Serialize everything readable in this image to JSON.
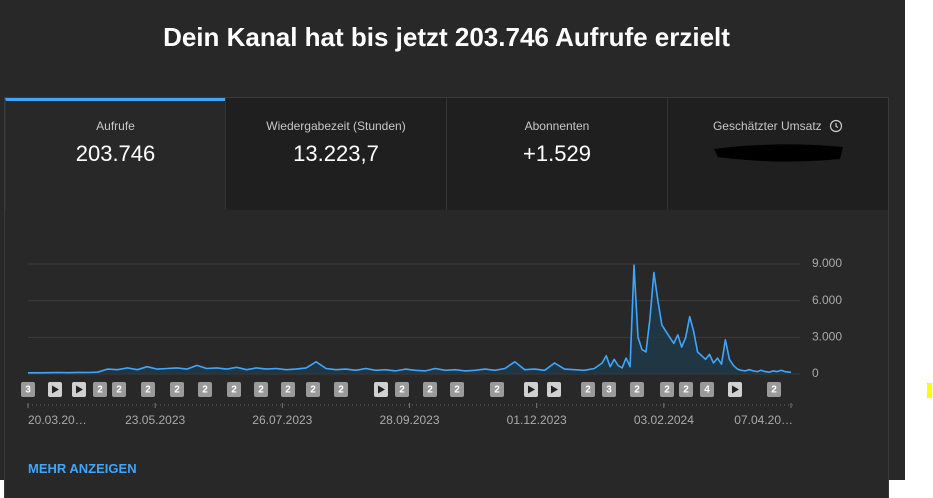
{
  "header": {
    "title": "Dein Kanal hat bis jetzt 203.746 Aufrufe erzielt"
  },
  "tabs": [
    {
      "label": "Aufrufe",
      "value": "203.746"
    },
    {
      "label": "Wiedergabezeit (Stunden)",
      "value": "13.223,7"
    },
    {
      "label": "Abonnenten",
      "value": "+1.529"
    },
    {
      "label": "Geschätzter Umsatz"
    }
  ],
  "chart_data": {
    "type": "line",
    "color": "#3ea6ff",
    "grid": true,
    "x": [
      "20.03.2023",
      "25.03.2023",
      "30.03.2023",
      "04.04.2023",
      "09.04.2023",
      "14.04.2023",
      "19.04.2023",
      "24.04.2023",
      "29.04.2023",
      "04.05.2023",
      "09.05.2023",
      "14.05.2023",
      "19.05.2023",
      "24.05.2023",
      "29.05.2023",
      "03.06.2023",
      "08.06.2023",
      "13.06.2023",
      "18.06.2023",
      "23.06.2023",
      "28.06.2023",
      "03.07.2023",
      "08.07.2023",
      "13.07.2023",
      "18.07.2023",
      "23.07.2023",
      "28.07.2023",
      "02.08.2023",
      "07.08.2023",
      "12.08.2023",
      "17.08.2023",
      "22.08.2023",
      "27.08.2023",
      "01.09.2023",
      "06.09.2023",
      "11.09.2023",
      "16.09.2023",
      "21.09.2023",
      "26.09.2023",
      "01.10.2023",
      "06.10.2023",
      "11.10.2023",
      "16.10.2023",
      "21.10.2023",
      "26.10.2023",
      "31.10.2023",
      "05.11.2023",
      "10.11.2023",
      "15.11.2023",
      "20.11.2023",
      "25.11.2023",
      "30.11.2023",
      "05.12.2023",
      "10.12.2023",
      "15.12.2023",
      "20.12.2023",
      "25.12.2023",
      "30.12.2023",
      "03.01.2024",
      "05.01.2024",
      "07.01.2024",
      "09.01.2024",
      "11.01.2024",
      "13.01.2024",
      "15.01.2024",
      "17.01.2024",
      "19.01.2024",
      "21.01.2024",
      "23.01.2024",
      "25.01.2024",
      "27.01.2024",
      "29.01.2024",
      "31.01.2024",
      "02.02.2024",
      "04.02.2024",
      "06.02.2024",
      "08.02.2024",
      "10.02.2024",
      "12.02.2024",
      "14.02.2024",
      "16.02.2024",
      "18.02.2024",
      "20.02.2024",
      "22.02.2024",
      "24.02.2024",
      "26.02.2024",
      "28.02.2024",
      "01.03.2024",
      "03.03.2024",
      "05.03.2024",
      "07.03.2024",
      "09.03.2024",
      "11.03.2024",
      "13.03.2024",
      "15.03.2024",
      "17.03.2024",
      "19.03.2024",
      "21.03.2024",
      "23.03.2024",
      "25.03.2024",
      "27.03.2024",
      "29.03.2024",
      "31.03.2024",
      "02.04.2024",
      "04.04.2024",
      "06.04.2024",
      "07.04.2024"
    ],
    "values": [
      100,
      100,
      110,
      120,
      110,
      130,
      120,
      150,
      400,
      350,
      500,
      350,
      600,
      400,
      450,
      500,
      400,
      700,
      450,
      500,
      400,
      550,
      350,
      500,
      400,
      450,
      350,
      400,
      500,
      1000,
      450,
      350,
      400,
      300,
      450,
      300,
      350,
      250,
      400,
      300,
      250,
      450,
      300,
      350,
      250,
      300,
      400,
      300,
      450,
      1000,
      350,
      400,
      300,
      900,
      400,
      350,
      300,
      450,
      900,
      1500,
      600,
      1200,
      700,
      500,
      1300,
      600,
      8900,
      3000,
      2000,
      1800,
      4500,
      8300,
      6000,
      4000,
      3500,
      3000,
      2500,
      3200,
      2200,
      3000,
      4700,
      3500,
      1800,
      1500,
      1200,
      1600,
      900,
      1300,
      800,
      2800,
      1200,
      700,
      400,
      300,
      250,
      350,
      250,
      200,
      300,
      200,
      150,
      250,
      200,
      300,
      200,
      150,
      150
    ],
    "xlim": [
      "20.03.2023",
      "08.04.2024"
    ],
    "xticks": [
      {
        "value": "20.03.2023",
        "label": "20.03.20…"
      },
      "23.05.2023",
      "26.07.2023",
      "28.09.2023",
      "01.12.2023",
      "03.02.2024",
      {
        "value": "07.04.2024",
        "label": "07.04.20…"
      }
    ],
    "ylim": [
      0,
      9000
    ],
    "yticks": [
      0,
      {
        "value": 3000,
        "label": "3.000"
      },
      {
        "value": 6000,
        "label": "6.000"
      },
      {
        "value": 9000,
        "label": "9.000"
      }
    ]
  },
  "timeline_markers": [
    "3",
    "2",
    "2",
    "2",
    "2",
    "2",
    "2",
    "2",
    "2",
    "2",
    "2",
    "2",
    "2",
    "2",
    "2",
    "2",
    "3",
    "2",
    "2",
    "2",
    "4",
    "2"
  ],
  "link": "MEHR ANZEIGEN"
}
